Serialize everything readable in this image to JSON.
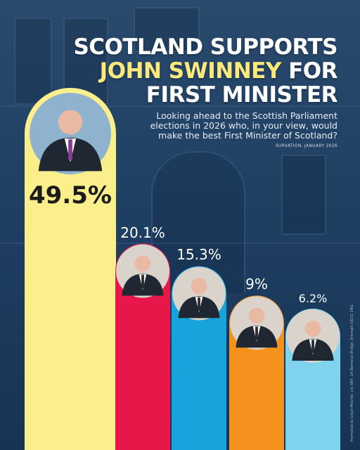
{
  "headline": {
    "line1": "SCOTLAND SUPPORTS",
    "line2_accent": "JOHN SWINNEY",
    "line2_rest": "FOR",
    "line3": "FIRST MINISTER"
  },
  "subtitle": "Looking ahead to the Scottish Parliament elections in 2026 who, in your view, would make the best First Minister of Scotland?",
  "source": "SURVATION, JANUARY 2026",
  "imprint": "Promoted by Lloyd Melville, c/o SNP, 14 Bothwick Bridge, Arbroath DD11 1NG.",
  "chart_data": {
    "type": "bar",
    "categories": [
      "",
      "",
      "",
      "",
      ""
    ],
    "values": [
      49.5,
      20.1,
      15.3,
      9,
      6.2
    ],
    "value_labels": [
      "49.5%",
      "20.1%",
      "15.3%",
      "9%",
      "6.2%"
    ],
    "colors": [
      "#fbef8c",
      "#e8174a",
      "#17a4dd",
      "#f5921e",
      "#7fd3ee"
    ],
    "photo_icons": [
      "portrait-icon",
      "portrait-icon",
      "portrait-icon",
      "portrait-icon",
      "portrait-icon"
    ],
    "title": "",
    "xlabel": "",
    "ylabel": "",
    "grid": false,
    "legend": "none"
  }
}
